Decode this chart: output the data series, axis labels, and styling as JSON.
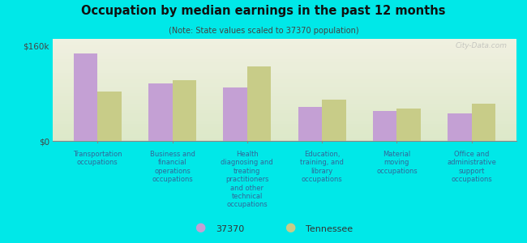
{
  "title": "Occupation by median earnings in the past 12 months",
  "subtitle": "(Note: State values scaled to 37370 population)",
  "categories": [
    "Transportation\noccupations",
    "Business and\nfinancial\noperations\noccupations",
    "Health\ndiagnosing and\ntreating\npractitioners\nand other\ntechnical\noccupations",
    "Education,\ntraining, and\nlibrary\noccupations",
    "Material\nmoving\noccupations",
    "Office and\nadministrative\nsupport\noccupations"
  ],
  "values_37370": [
    148000,
    97000,
    90000,
    58000,
    50000,
    47000
  ],
  "values_tennessee": [
    83000,
    103000,
    125000,
    70000,
    55000,
    63000
  ],
  "color_37370": "#c4a0d4",
  "color_tennessee": "#c8cc88",
  "ylim": [
    0,
    172000
  ],
  "ytick_val": 160000,
  "ytick_labels": [
    "$0",
    "$160k"
  ],
  "background_color": "#00e8e8",
  "plot_bg_top": "#f0f0e0",
  "plot_bg_bottom": "#dce8c8",
  "legend_37370": "37370",
  "legend_tennessee": "Tennessee",
  "watermark": "City-Data.com",
  "xlabel_color": "#336699",
  "title_color": "#111111",
  "subtitle_color": "#444444"
}
